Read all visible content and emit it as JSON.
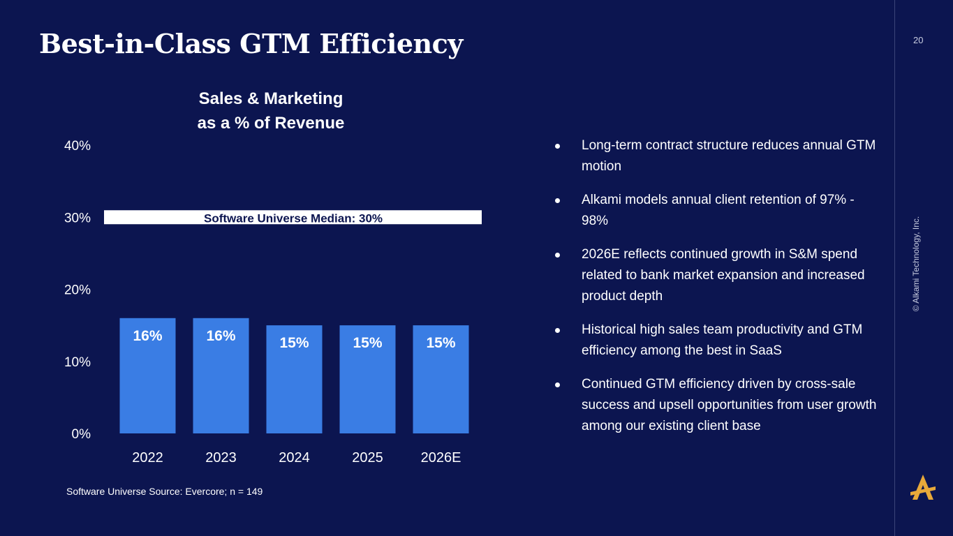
{
  "slide": {
    "title": "Best-in-Class GTM Efficiency",
    "page_number": "20",
    "copyright": "© Alkami Technology, Inc.",
    "source_note": "Software Universe Source: Evercore; n = 149"
  },
  "chart_data": {
    "type": "bar",
    "title_lines": [
      "Sales & Marketing",
      "as a % of Revenue"
    ],
    "categories": [
      "2022",
      "2023",
      "2024",
      "2025",
      "2026E"
    ],
    "values": [
      16,
      16,
      15,
      15,
      15
    ],
    "value_labels": [
      "16%",
      "16%",
      "15%",
      "15%",
      "15%"
    ],
    "ylim": [
      0,
      40
    ],
    "yticks": [
      0,
      10,
      20,
      30,
      40
    ],
    "ytick_labels": [
      "0%",
      "10%",
      "20%",
      "30%",
      "40%"
    ],
    "xlabel": "",
    "ylabel": "",
    "grid": false,
    "reference_line": {
      "value": 30,
      "label": "Software Universe Median: 30%"
    },
    "bar_color": "#3a7de4"
  },
  "bullets": [
    "Long-term contract structure reduces annual GTM motion",
    "Alkami models annual client retention of 97% - 98%",
    "2026E reflects continued growth in S&M spend related to bank market expansion and increased product depth",
    "Historical high sales team productivity and GTM efficiency among the best in SaaS",
    "Continued GTM efficiency driven by cross-sale success and upsell opportunities from user growth among our existing client base"
  ],
  "colors": {
    "background": "#0c1550",
    "accent": "#e8a93a",
    "bar": "#3a7de4"
  }
}
